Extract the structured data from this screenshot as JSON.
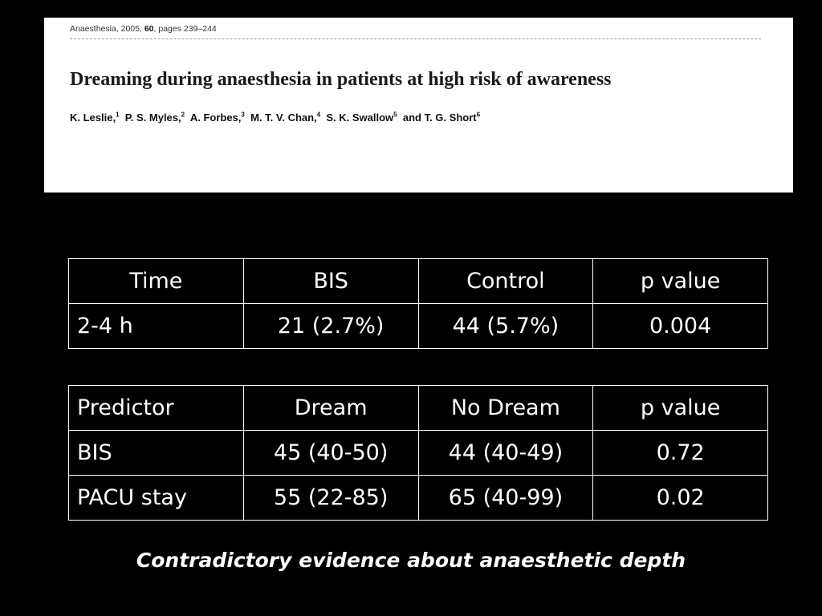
{
  "paper": {
    "journal": "Anaesthesia, 2005, ",
    "volume": "60",
    "pages": ", pages 239–244",
    "title": "Dreaming during anaesthesia in patients at high risk of awareness",
    "authors": [
      {
        "name": "K. Leslie,",
        "sup": "1"
      },
      {
        "name": "P. S. Myles,",
        "sup": "2"
      },
      {
        "name": "A. Forbes,",
        "sup": "3"
      },
      {
        "name": "M. T. V. Chan,",
        "sup": "4"
      },
      {
        "name": "S. K. Swallow",
        "sup": "5"
      },
      {
        "name": "and T. G. Short",
        "sup": "6"
      }
    ]
  },
  "table1": {
    "headers": [
      "Time",
      "BIS",
      "Control",
      "p value"
    ],
    "rows": [
      [
        "2-4 h",
        "21 (2.7%)",
        "44 (5.7%)",
        "0.004"
      ]
    ]
  },
  "table2": {
    "headers": [
      "Predictor",
      "Dream",
      "No Dream",
      "p value"
    ],
    "rows": [
      [
        "BIS",
        "45 (40-50)",
        "44 (40-49)",
        "0.72"
      ],
      [
        "PACU stay",
        "55 (22-85)",
        "65 (40-99)",
        "0.02"
      ]
    ]
  },
  "caption": "Contradictory evidence about anaesthetic depth"
}
